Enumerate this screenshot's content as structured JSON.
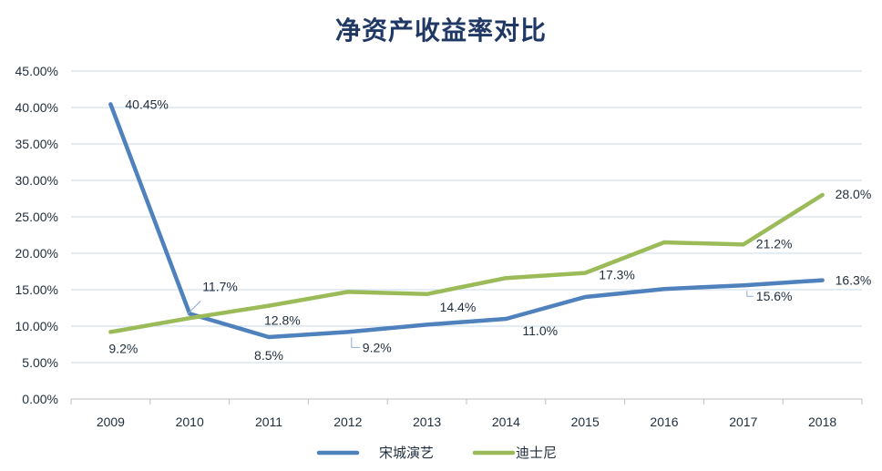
{
  "chart_data": {
    "type": "line",
    "title": "净资产收益率对比",
    "x": [
      "2009",
      "2010",
      "2011",
      "2012",
      "2013",
      "2014",
      "2015",
      "2016",
      "2017",
      "2018"
    ],
    "ylim": [
      0,
      0.45
    ],
    "yticks": [
      "0.00%",
      "5.00%",
      "10.00%",
      "15.00%",
      "20.00%",
      "25.00%",
      "30.00%",
      "35.00%",
      "40.00%",
      "45.00%"
    ],
    "grid": true,
    "legend_position": "bottom",
    "series": [
      {
        "name": "宋城演艺",
        "color": "#4f81bd",
        "values": [
          0.4045,
          0.117,
          0.085,
          0.092,
          0.102,
          0.11,
          0.14,
          0.151,
          0.156,
          0.163
        ],
        "labels": [
          "40.45%",
          "11.7%",
          "8.5%",
          "9.2%",
          null,
          "11.0%",
          null,
          null,
          "15.6%",
          "16.3%"
        ]
      },
      {
        "name": "迪士尼",
        "color": "#9bbb59",
        "values": [
          0.092,
          0.111,
          0.128,
          0.147,
          0.144,
          0.166,
          0.173,
          0.215,
          0.212,
          0.28
        ],
        "labels": [
          "9.2%",
          null,
          "12.8%",
          null,
          "14.4%",
          null,
          "17.3%",
          null,
          "21.2%",
          "28.0%"
        ]
      }
    ]
  }
}
